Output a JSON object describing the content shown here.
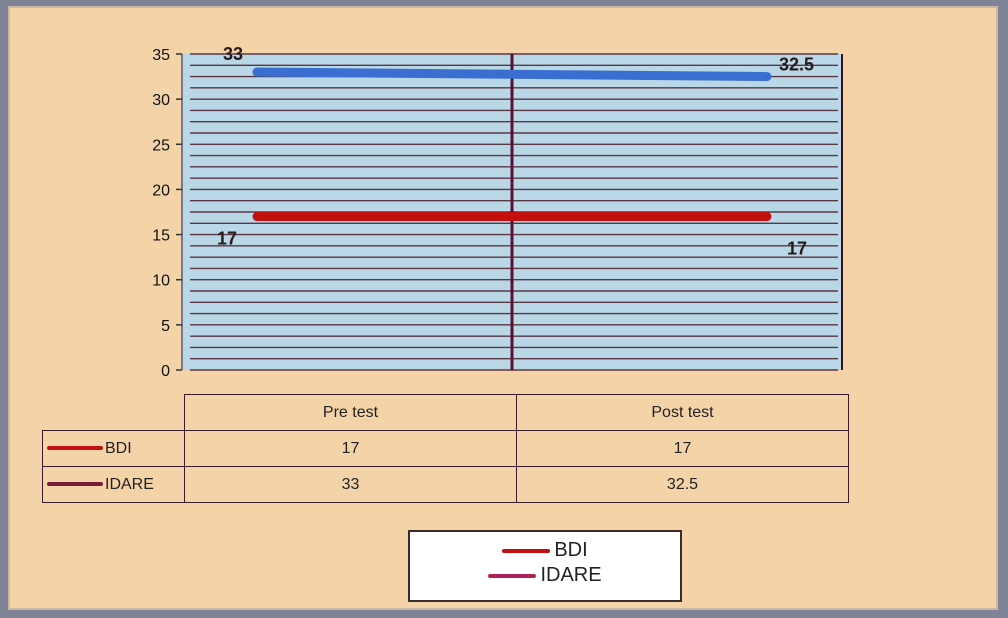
{
  "chart_data": {
    "type": "line",
    "categories": [
      "Pre test",
      "Post test"
    ],
    "series": [
      {
        "name": "BDI",
        "values": [
          17,
          17
        ],
        "color": "#c40f0f",
        "labels": [
          "17",
          "17"
        ]
      },
      {
        "name": "IDARE",
        "values": [
          33,
          32.5
        ],
        "color": "#3a6ed0",
        "labels": [
          "33",
          "32.5"
        ]
      }
    ],
    "ylim": [
      0,
      35
    ],
    "yticks": [
      "0",
      "5",
      "10",
      "15",
      "20",
      "25",
      "30",
      "35"
    ],
    "grid": true,
    "legend_position": "bottom",
    "plot_background": "#b9d7e6",
    "gridline_color": "#4a1a2a"
  },
  "table": {
    "columns": [
      "Pre test",
      "Post test"
    ],
    "rows": [
      {
        "name": "BDI",
        "cells": [
          "17",
          "17"
        ],
        "key_color": "#c40f0f"
      },
      {
        "name": "IDARE",
        "cells": [
          "33",
          "32.5"
        ],
        "key_color": "#7a1a3a"
      }
    ]
  },
  "legend": {
    "items": [
      {
        "name": "BDI",
        "color": "#c40f0f"
      },
      {
        "name": "IDARE",
        "color": "#b0205a"
      }
    ]
  }
}
